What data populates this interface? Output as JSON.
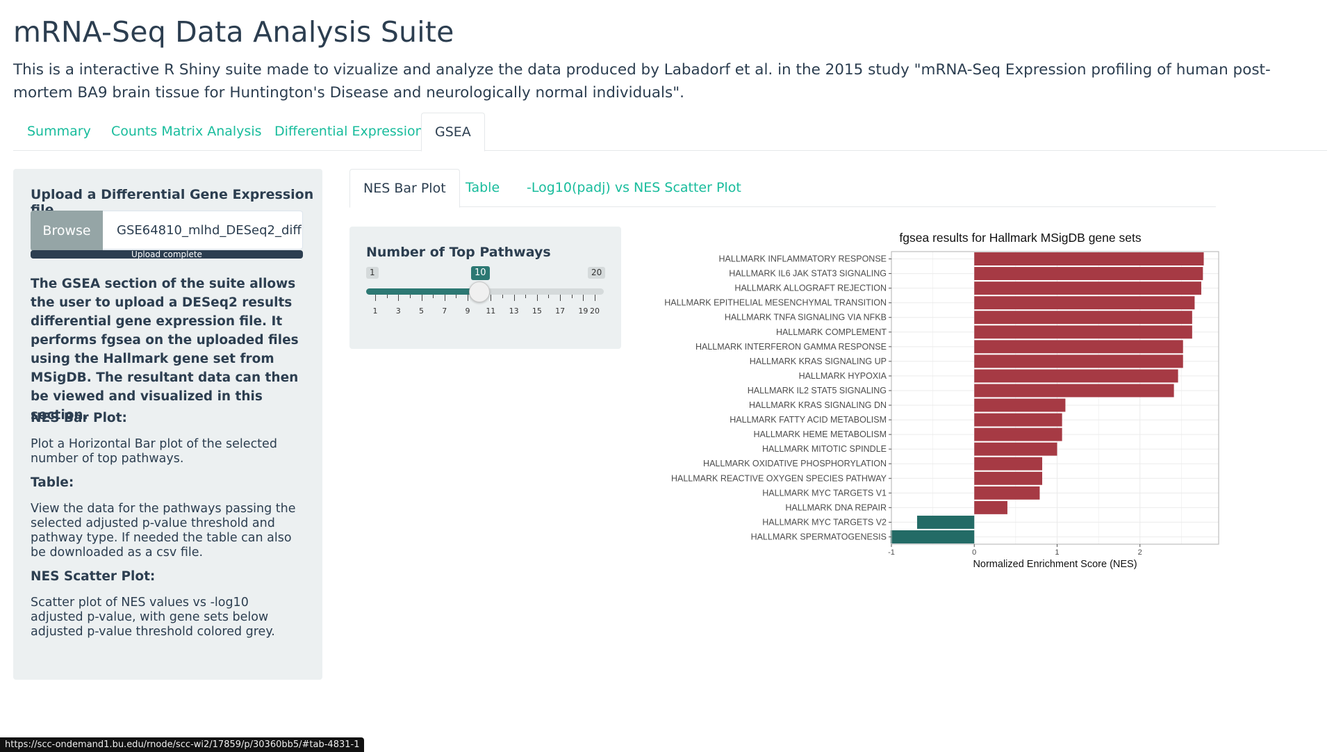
{
  "header": {
    "title": "mRNA-Seq Data Analysis Suite",
    "subtitle": "This is a interactive R Shiny suite made to vizualize and analyze the data produced by Labadorf et al. in the 2015 study \"mRNA-Seq Expression profiling of human post-mortem BA9 brain tissue for Huntington's Disease and neurologically normal individuals\"."
  },
  "tabs": [
    {
      "label": "Summary"
    },
    {
      "label": "Counts Matrix Analysis"
    },
    {
      "label": "Differential Expression"
    },
    {
      "label": "GSEA"
    }
  ],
  "active_tab": "GSEA",
  "sidebar": {
    "upload_label": "Upload a Differential Gene Expression file",
    "browse_label": "Browse",
    "file_value": "GSE64810_mlhd_DESeq2_diff",
    "progress_label": "Upload complete",
    "progress": 1.0,
    "description": "The GSEA section of the suite allows the user to upload a DESeq2 results differential gene expression file. It performs fgsea on the uploaded files using the Hallmark gene set from MSigDB. The resultant data can then be viewed and visualized in this section.",
    "sections": [
      {
        "heading": "NES Bar Plot:",
        "text": "Plot a Horizontal Bar plot of the selected number of top pathways."
      },
      {
        "heading": "Table:",
        "text": "View the data for the pathways passing the selected adjusted p-value threshold and pathway type. If needed the table can also be downloaded as a csv file."
      },
      {
        "heading": "NES Scatter Plot:",
        "text": "Scatter plot of NES values vs -log10 adjusted p-value, with gene sets below adjusted p-value threshold colored grey."
      }
    ]
  },
  "subtabs": [
    {
      "label": "NES Bar Plot"
    },
    {
      "label": "Table"
    },
    {
      "label": "-Log10(padj) vs NES Scatter Plot"
    }
  ],
  "active_subtab": "NES Bar Plot",
  "slider": {
    "label": "Number of Top Pathways",
    "min": 1,
    "max": 20,
    "value": 10,
    "tick_labels": [
      "1",
      "3",
      "5",
      "7",
      "9",
      "11",
      "13",
      "15",
      "17",
      "19",
      "20"
    ],
    "fill_color": "#2c7873"
  },
  "chart_data": {
    "type": "bar",
    "orientation": "horizontal",
    "title": "fgsea results for Hallmark MSigDB gene sets",
    "xlabel": "Normalized Enrichment Score (NES)",
    "ylabel": "",
    "xlim": [
      -1.0,
      2.95
    ],
    "xticks": [
      -1,
      0,
      1,
      2
    ],
    "grid": true,
    "legend": "none",
    "positive_color": "#a63a44",
    "negative_color": "#236b66",
    "categories": [
      "HALLMARK INFLAMMATORY RESPONSE",
      "HALLMARK IL6 JAK STAT3 SIGNALING",
      "HALLMARK ALLOGRAFT REJECTION",
      "HALLMARK EPITHELIAL MESENCHYMAL TRANSITION",
      "HALLMARK TNFA SIGNALING VIA NFKB",
      "HALLMARK COMPLEMENT",
      "HALLMARK INTERFERON GAMMA RESPONSE",
      "HALLMARK KRAS SIGNALING UP",
      "HALLMARK HYPOXIA",
      "HALLMARK IL2 STAT5 SIGNALING",
      "HALLMARK KRAS SIGNALING DN",
      "HALLMARK FATTY ACID METABOLISM",
      "HALLMARK HEME METABOLISM",
      "HALLMARK MITOTIC SPINDLE",
      "HALLMARK OXIDATIVE PHOSPHORYLATION",
      "HALLMARK REACTIVE OXYGEN SPECIES PATHWAY",
      "HALLMARK MYC TARGETS V1",
      "HALLMARK DNA REPAIR",
      "HALLMARK MYC TARGETS V2",
      "HALLMARK SPERMATOGENESIS"
    ],
    "values": [
      2.77,
      2.76,
      2.74,
      2.66,
      2.63,
      2.63,
      2.52,
      2.52,
      2.46,
      2.41,
      1.1,
      1.06,
      1.06,
      1.0,
      0.82,
      0.82,
      0.79,
      0.4,
      -0.69,
      -1.01
    ]
  },
  "status_bar": {
    "url": "https://scc-ondemand1.bu.edu/rnode/scc-wi2/17859/p/30360bb5/#tab-4831-1"
  }
}
